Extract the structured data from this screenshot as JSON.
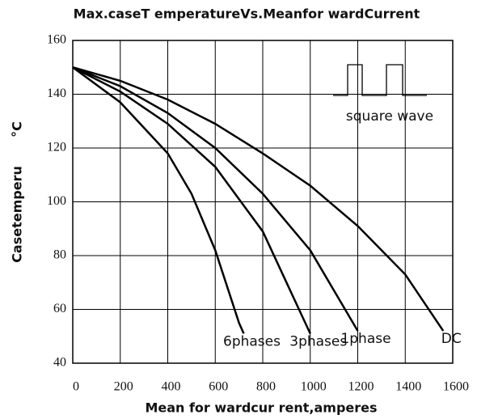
{
  "chart_data": {
    "type": "line",
    "title": "Max.caseT   emperatureVs.Meanfor  wardCurrent",
    "x_label": "Mean for  wardcur rent,amperes",
    "y_label": "Casetemperu",
    "y_unit": "°C",
    "annotation": "square wave",
    "xlim": [
      0,
      1600
    ],
    "xticks": [
      0,
      200,
      400,
      600,
      800,
      1000,
      1200,
      1400,
      1600
    ],
    "ylim": [
      40,
      160
    ],
    "yticks": [
      40,
      60,
      80,
      100,
      120,
      140,
      160
    ],
    "grid": true,
    "color": "#000000",
    "series": [
      {
        "name": "6phases",
        "x": [
          0,
          200,
          400,
          500,
          600,
          700,
          720
        ],
        "values": [
          150,
          137,
          118,
          103,
          82,
          55,
          51
        ]
      },
      {
        "name": "3phases",
        "x": [
          0,
          200,
          400,
          600,
          800,
          1000
        ],
        "values": [
          150,
          141,
          129,
          113,
          89,
          51
        ]
      },
      {
        "name": "1phase",
        "x": [
          0,
          200,
          400,
          600,
          800,
          1000,
          1200
        ],
        "values": [
          150,
          143,
          133,
          120,
          103,
          82,
          52
        ]
      },
      {
        "name": "DC",
        "x": [
          0,
          200,
          400,
          600,
          800,
          1000,
          1200,
          1400,
          1560
        ],
        "values": [
          150,
          145,
          138,
          129,
          118,
          106,
          91,
          73,
          52
        ]
      }
    ]
  }
}
